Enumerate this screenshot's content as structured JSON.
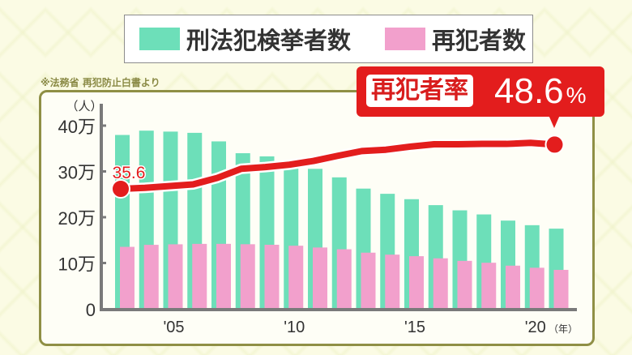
{
  "source_note": "※法務省 再犯防止白書より",
  "legend": [
    {
      "label": "刑法犯検挙者数",
      "color": "#6ddfb9"
    },
    {
      "label": "再犯者数",
      "color": "#f2a0cc"
    }
  ],
  "callout": {
    "label": "再犯者率",
    "value": "48.6",
    "unit": "%",
    "color": "#e31d1d"
  },
  "chart_data": {
    "type": "bar+line",
    "y_unit_label": "（人）",
    "x_unit_label": "（年）",
    "ylim": [
      0,
      400000
    ],
    "y_ticks": [
      {
        "value": 0,
        "label": "0"
      },
      {
        "value": 100000,
        "label": "10万"
      },
      {
        "value": 200000,
        "label": "20万"
      },
      {
        "value": 300000,
        "label": "30万"
      },
      {
        "value": 400000,
        "label": "40万"
      }
    ],
    "x_ticks": [
      {
        "year": 2005,
        "label": "'05"
      },
      {
        "year": 2010,
        "label": "'10"
      },
      {
        "year": 2015,
        "label": "'15"
      },
      {
        "year": 2020,
        "label": "'20"
      }
    ],
    "years": [
      2003,
      2004,
      2005,
      2006,
      2007,
      2008,
      2009,
      2010,
      2011,
      2012,
      2013,
      2014,
      2015,
      2016,
      2017,
      2018,
      2019,
      2020,
      2021
    ],
    "series": [
      {
        "name": "刑法犯検挙者数",
        "type": "bar",
        "color": "#6ddfb9",
        "values": [
          379602,
          389027,
          386955,
          384250,
          365577,
          339752,
          332888,
          322620,
          305631,
          287021,
          262486,
          251115,
          239355,
          226376,
          215003,
          206094,
          192607,
          182582,
          175041
        ]
      },
      {
        "name": "再犯者数",
        "type": "bar",
        "color": "#f2a0cc",
        "values": [
          135295,
          139664,
          140852,
          141788,
          141844,
          140997,
          139813,
          137759,
          133866,
          130021,
          122581,
          118275,
          114890,
          110245,
          104707,
          100574,
          94209,
          89648,
          85032
        ]
      },
      {
        "name": "再犯者率",
        "type": "line",
        "unit": "%",
        "color": "#e31d1d",
        "values": [
          35.6,
          35.9,
          36.4,
          36.9,
          38.8,
          41.5,
          42.0,
          42.7,
          43.8,
          45.3,
          46.7,
          47.1,
          48.0,
          48.7,
          48.7,
          48.8,
          48.8,
          49.1,
          48.6
        ],
        "data_labels": [
          {
            "year": 2003,
            "label": "35.6"
          }
        ]
      }
    ]
  }
}
